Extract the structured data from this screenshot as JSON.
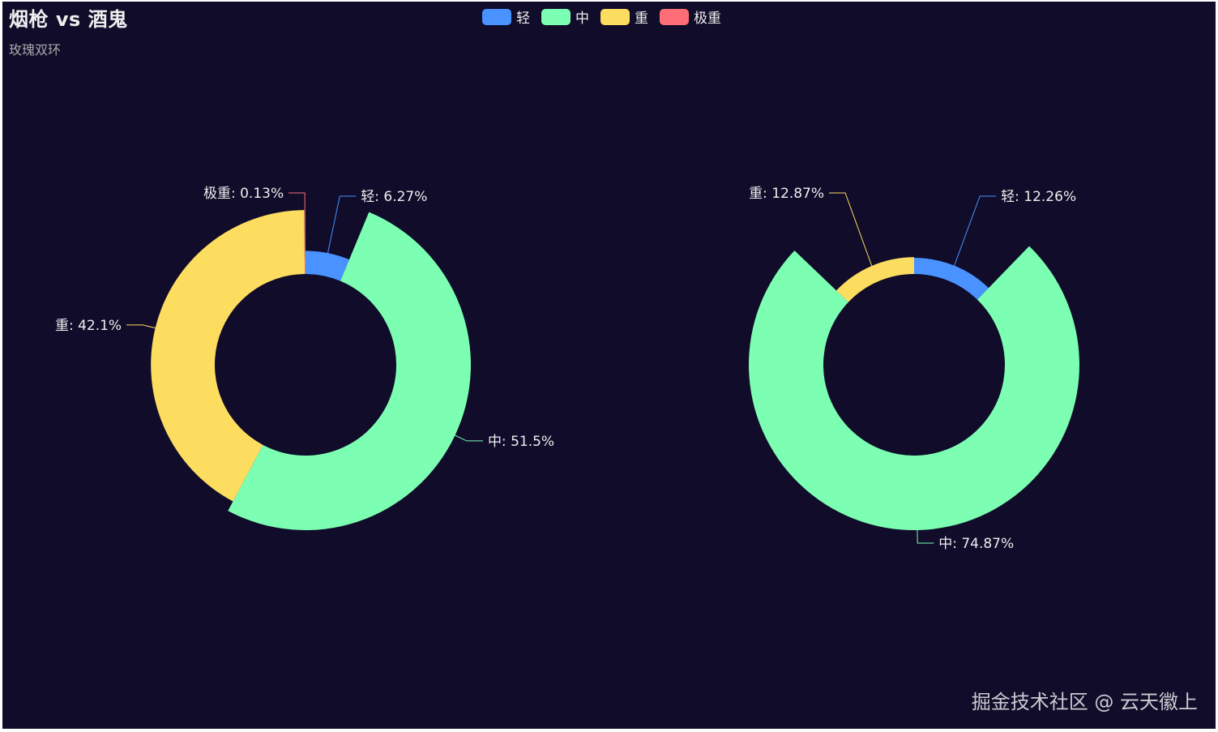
{
  "header": {
    "title": "烟枪 vs 酒鬼",
    "subtitle": "玫瑰双环"
  },
  "legend": {
    "items": [
      {
        "label": "轻",
        "color": "#4992ff"
      },
      {
        "label": "中",
        "color": "#7cffb2"
      },
      {
        "label": "重",
        "color": "#fddd60"
      },
      {
        "label": "极重",
        "color": "#ff6e76"
      }
    ]
  },
  "watermark": "掘金技术社区 @ 云天徽上",
  "colors": {
    "background": "#100c2a",
    "text": "#eeeeee"
  },
  "chart_data": [
    {
      "type": "pie",
      "rose_type": "radius",
      "inner_ratio": 0.4,
      "categories": [
        "轻",
        "中",
        "重",
        "极重"
      ],
      "values": [
        6.27,
        51.5,
        42.1,
        0.13
      ],
      "labels": [
        "轻: 6.27%",
        "中: 51.5%",
        "重: 42.1%",
        "极重: 0.13%"
      ]
    },
    {
      "type": "pie",
      "rose_type": "radius",
      "inner_ratio": 0.4,
      "categories": [
        "轻",
        "中",
        "重"
      ],
      "values": [
        12.26,
        74.87,
        12.87
      ],
      "labels": [
        "轻: 12.26%",
        "中: 74.87%",
        "重: 12.87%"
      ]
    }
  ]
}
